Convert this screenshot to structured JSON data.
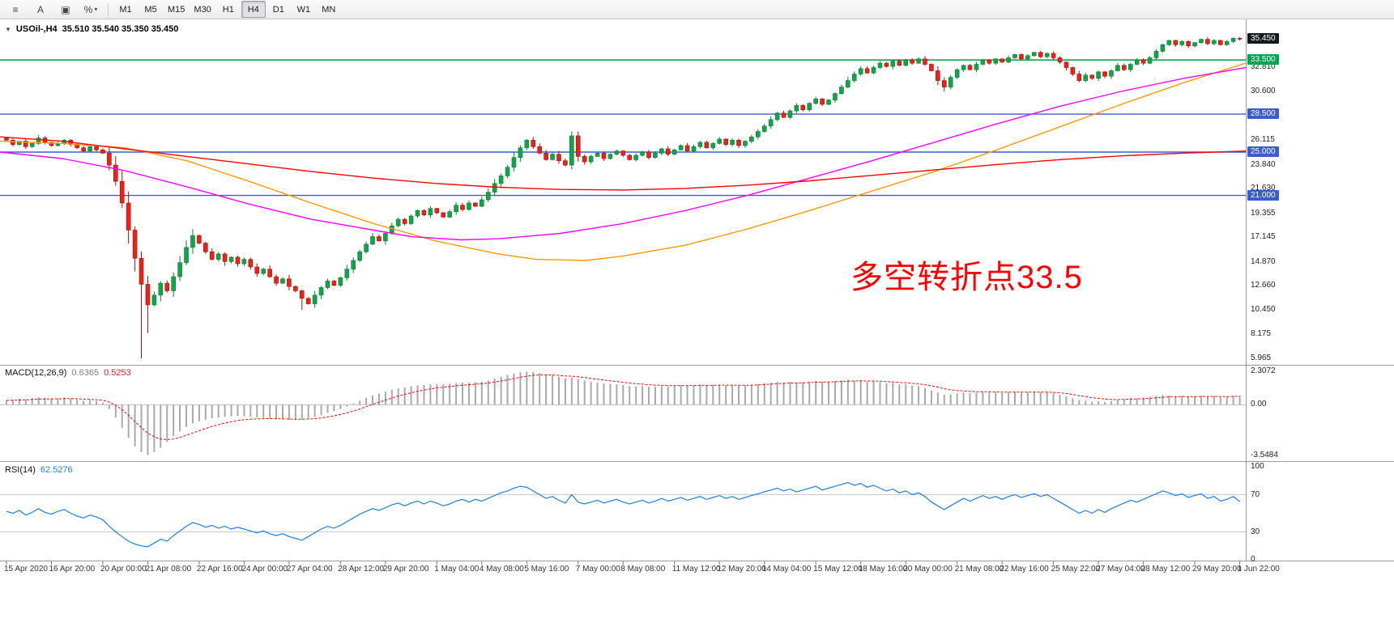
{
  "toolbar": {
    "tools": [
      {
        "name": "menu-icon",
        "glyph": "≡"
      },
      {
        "name": "text-tool-icon",
        "glyph": "A"
      },
      {
        "name": "frame-tool-icon",
        "glyph": "▣"
      },
      {
        "name": "indicator-dropdown-icon",
        "glyph": "%",
        "caret": "▾"
      }
    ],
    "timeframes": [
      "M1",
      "M5",
      "M15",
      "M30",
      "H1",
      "H4",
      "D1",
      "W1",
      "MN"
    ],
    "active_timeframe": "H4"
  },
  "main_header": {
    "dropdown_glyph": "▼",
    "symbol_text": "USOil-,H4",
    "ohlc_text": "35.510 35.540 35.350 35.450"
  },
  "annotation": {
    "text": "多空转折点33.5",
    "color": "#ff0000"
  },
  "chart_data": {
    "type": "candlestick",
    "symbol": "USOil-",
    "timeframe": "H4",
    "colors": {
      "up": "#10a54a",
      "up_border": "#0b7d36",
      "down": "#e8231a",
      "down_border": "#a31208",
      "macd_hist": "#a9a9a9",
      "macd_signal": "#ff0000",
      "rsi": "#1f7fe0",
      "separator": "#9a9a9a"
    },
    "price_axis": {
      "ticks": [
        "32.810",
        "30.600",
        "26.115",
        "23.840",
        "21.630",
        "19.355",
        "17.145",
        "14.870",
        "12.660",
        "10.450",
        "8.175",
        "5.965"
      ],
      "highlights": [
        {
          "label": "35.450",
          "value": 35.45,
          "bg": "#15181f"
        },
        {
          "label": "33.500",
          "value": 33.5,
          "bg": "#00a651"
        },
        {
          "label": "28.500",
          "value": 28.5,
          "bg": "#3a5fcd"
        },
        {
          "label": "25.000",
          "value": 25.0,
          "bg": "#3a5fcd"
        },
        {
          "label": "21.000",
          "value": 21.0,
          "bg": "#3a5fcd"
        }
      ]
    },
    "hlines": [
      {
        "value": 33.5,
        "color": "#009e46"
      },
      {
        "value": 28.5,
        "color": "#3a5fcd"
      },
      {
        "value": 25.0,
        "color": "#3a5fcd"
      },
      {
        "value": 21.0,
        "color": "#3a5fcd"
      }
    ],
    "moving_averages": [
      {
        "name": "ma-orange",
        "color": "#ff9900",
        "points": [
          [
            0,
            26.0
          ],
          [
            0.05,
            25.8
          ],
          [
            0.1,
            25.4
          ],
          [
            0.15,
            24.2
          ],
          [
            0.2,
            22.3
          ],
          [
            0.25,
            20.3
          ],
          [
            0.3,
            18.4
          ],
          [
            0.35,
            16.8
          ],
          [
            0.4,
            15.6
          ],
          [
            0.43,
            15.1
          ],
          [
            0.47,
            15.0
          ],
          [
            0.5,
            15.4
          ],
          [
            0.55,
            16.4
          ],
          [
            0.6,
            17.9
          ],
          [
            0.65,
            19.6
          ],
          [
            0.7,
            21.4
          ],
          [
            0.75,
            23.2
          ],
          [
            0.8,
            25.2
          ],
          [
            0.85,
            27.3
          ],
          [
            0.9,
            29.4
          ],
          [
            0.95,
            31.4
          ],
          [
            1,
            33.2
          ]
        ]
      },
      {
        "name": "ma-magenta",
        "color": "#ff00ff",
        "points": [
          [
            0,
            25.0
          ],
          [
            0.05,
            24.4
          ],
          [
            0.1,
            23.3
          ],
          [
            0.15,
            21.8
          ],
          [
            0.2,
            20.2
          ],
          [
            0.25,
            18.8
          ],
          [
            0.3,
            17.8
          ],
          [
            0.33,
            17.2
          ],
          [
            0.37,
            16.9
          ],
          [
            0.4,
            17.0
          ],
          [
            0.45,
            17.5
          ],
          [
            0.5,
            18.4
          ],
          [
            0.55,
            19.6
          ],
          [
            0.6,
            21.0
          ],
          [
            0.65,
            22.6
          ],
          [
            0.7,
            24.2
          ],
          [
            0.75,
            25.9
          ],
          [
            0.8,
            27.6
          ],
          [
            0.85,
            29.2
          ],
          [
            0.9,
            30.6
          ],
          [
            0.95,
            31.8
          ],
          [
            1,
            32.8
          ]
        ]
      },
      {
        "name": "ma-red",
        "color": "#ff0000",
        "points": [
          [
            0,
            26.4
          ],
          [
            0.05,
            26.0
          ],
          [
            0.1,
            25.3
          ],
          [
            0.15,
            24.6
          ],
          [
            0.2,
            23.9
          ],
          [
            0.25,
            23.2
          ],
          [
            0.3,
            22.6
          ],
          [
            0.35,
            22.1
          ],
          [
            0.4,
            21.75
          ],
          [
            0.45,
            21.55
          ],
          [
            0.5,
            21.5
          ],
          [
            0.55,
            21.65
          ],
          [
            0.6,
            21.95
          ],
          [
            0.65,
            22.35
          ],
          [
            0.7,
            22.85
          ],
          [
            0.75,
            23.35
          ],
          [
            0.8,
            23.85
          ],
          [
            0.85,
            24.3
          ],
          [
            0.9,
            24.65
          ],
          [
            0.95,
            24.9
          ],
          [
            1,
            25.1
          ]
        ]
      }
    ],
    "candles": {
      "first_open": 26.3,
      "closes": [
        26.1,
        25.7,
        26.0,
        25.5,
        25.8,
        26.3,
        25.9,
        25.6,
        25.8,
        26.1,
        25.7,
        25.4,
        25.1,
        25.5,
        25.2,
        24.9,
        23.8,
        22.3,
        20.3,
        17.8,
        15.2,
        12.8,
        10.9,
        11.8,
        12.9,
        12.2,
        13.5,
        14.8,
        16.2,
        17.3,
        16.6,
        15.8,
        15.1,
        15.6,
        14.9,
        15.3,
        14.7,
        15.1,
        14.4,
        13.8,
        14.2,
        13.5,
        12.9,
        13.3,
        12.6,
        12.2,
        11.5,
        11.0,
        11.8,
        12.5,
        13.1,
        12.7,
        13.4,
        14.2,
        15.0,
        15.8,
        16.5,
        17.2,
        16.8,
        17.5,
        18.2,
        18.8,
        18.4,
        19.1,
        19.6,
        19.2,
        19.8,
        19.4,
        19.0,
        19.5,
        20.1,
        19.7,
        20.3,
        20.0,
        20.6,
        21.3,
        22.1,
        22.8,
        23.6,
        24.5,
        25.4,
        26.1,
        25.5,
        24.9,
        24.3,
        24.8,
        24.2,
        23.8,
        26.5,
        24.6,
        24.1,
        24.6,
        24.9,
        24.4,
        24.8,
        25.1,
        24.7,
        24.3,
        24.7,
        25.0,
        24.5,
        24.9,
        25.3,
        24.8,
        25.2,
        25.6,
        25.1,
        25.5,
        25.9,
        25.4,
        25.8,
        26.2,
        25.7,
        26.1,
        25.6,
        26.0,
        26.4,
        26.9,
        27.4,
        28.0,
        28.6,
        28.2,
        28.8,
        29.3,
        28.9,
        29.5,
        29.9,
        29.4,
        29.8,
        30.4,
        31.0,
        31.6,
        32.2,
        32.7,
        32.3,
        32.8,
        33.2,
        32.9,
        33.4,
        33.0,
        33.5,
        33.2,
        33.6,
        33.1,
        32.5,
        31.6,
        31.0,
        31.9,
        32.6,
        33.0,
        32.6,
        33.1,
        33.5,
        33.2,
        33.6,
        33.3,
        33.7,
        34.0,
        33.6,
        33.9,
        34.2,
        33.8,
        34.1,
        33.7,
        33.3,
        32.8,
        32.2,
        31.6,
        32.1,
        31.8,
        32.4,
        32.0,
        32.5,
        33.0,
        32.6,
        33.1,
        33.5,
        33.2,
        33.7,
        34.3,
        34.9,
        35.3,
        34.9,
        35.2,
        34.8,
        35.1,
        35.4,
        35.0,
        35.3,
        34.9,
        35.2,
        35.5,
        35.45
      ],
      "wick_overrides": {
        "21": {
          "low": 5.97
        },
        "22": {
          "low": 8.3
        },
        "46": {
          "low": 10.45
        },
        "88": {
          "high": 26.9
        },
        "146": {
          "low": 30.6
        }
      }
    },
    "macd": {
      "title": "MACD(12,26,9)",
      "value_main": "0.6365",
      "value_signal": "0.5253",
      "range": [
        -3.7,
        2.5
      ],
      "axis_ticks": [
        "2.3072",
        "0.00",
        "-3.5484"
      ],
      "histogram": [
        0.3,
        0.35,
        0.42,
        0.38,
        0.45,
        0.52,
        0.48,
        0.4,
        0.44,
        0.5,
        0.42,
        0.35,
        0.28,
        0.32,
        0.25,
        0.15,
        -0.3,
        -0.9,
        -1.6,
        -2.3,
        -2.9,
        -3.3,
        -3.5,
        -3.3,
        -3.0,
        -2.6,
        -2.2,
        -1.85,
        -1.55,
        -1.3,
        -1.15,
        -1.05,
        -0.95,
        -0.9,
        -0.85,
        -0.8,
        -0.78,
        -0.8,
        -0.85,
        -0.9,
        -0.92,
        -0.95,
        -1.0,
        -1.02,
        -1.05,
        -1.05,
        -1.02,
        -0.95,
        -0.85,
        -0.72,
        -0.58,
        -0.45,
        -0.3,
        -0.12,
        0.08,
        0.28,
        0.48,
        0.65,
        0.78,
        0.92,
        1.05,
        1.15,
        1.2,
        1.28,
        1.35,
        1.38,
        1.42,
        1.45,
        1.42,
        1.45,
        1.5,
        1.55,
        1.52,
        1.58,
        1.62,
        1.7,
        1.82,
        1.95,
        2.08,
        2.18,
        2.26,
        2.3,
        2.28,
        2.2,
        2.1,
        2.05,
        1.95,
        1.85,
        1.9,
        1.8,
        1.68,
        1.6,
        1.55,
        1.48,
        1.45,
        1.42,
        1.38,
        1.3,
        1.28,
        1.3,
        1.25,
        1.25,
        1.3,
        1.28,
        1.32,
        1.35,
        1.32,
        1.35,
        1.4,
        1.35,
        1.38,
        1.4,
        1.35,
        1.38,
        1.32,
        1.35,
        1.4,
        1.45,
        1.5,
        1.55,
        1.6,
        1.55,
        1.6,
        1.55,
        1.58,
        1.62,
        1.66,
        1.6,
        1.62,
        1.66,
        1.7,
        1.74,
        1.68,
        1.72,
        1.62,
        1.65,
        1.58,
        1.5,
        1.52,
        1.42,
        1.44,
        1.32,
        1.3,
        1.18,
        1.0,
        0.85,
        0.7,
        0.72,
        0.78,
        0.85,
        0.8,
        0.84,
        0.9,
        0.85,
        0.88,
        0.82,
        0.86,
        0.9,
        0.85,
        0.88,
        0.92,
        0.86,
        0.88,
        0.8,
        0.7,
        0.58,
        0.45,
        0.32,
        0.28,
        0.22,
        0.25,
        0.2,
        0.26,
        0.32,
        0.4,
        0.48,
        0.45,
        0.5,
        0.56,
        0.62,
        0.68,
        0.64,
        0.58,
        0.62,
        0.55,
        0.58,
        0.62,
        0.55,
        0.6,
        0.52,
        0.56,
        0.62,
        0.6365
      ]
    },
    "rsi": {
      "title": "RSI(14)",
      "value": "62.5276",
      "levels": [
        70,
        30
      ],
      "axis_ticks": [
        "100",
        "70",
        "30",
        "0"
      ],
      "series": [
        52,
        50,
        53,
        48,
        51,
        55,
        51,
        49,
        52,
        54,
        50,
        47,
        45,
        48,
        46,
        43,
        36,
        30,
        25,
        20,
        17,
        15,
        14,
        18,
        22,
        20,
        26,
        31,
        36,
        40,
        38,
        35,
        37,
        34,
        36,
        33,
        35,
        33,
        31,
        29,
        31,
        28,
        26,
        28,
        25,
        23,
        21,
        25,
        29,
        33,
        36,
        34,
        37,
        41,
        45,
        49,
        52,
        55,
        53,
        56,
        59,
        61,
        58,
        61,
        63,
        60,
        63,
        61,
        58,
        60,
        63,
        65,
        62,
        65,
        63,
        66,
        69,
        72,
        74,
        77,
        79,
        78,
        74,
        70,
        66,
        68,
        64,
        61,
        70,
        62,
        60,
        62,
        64,
        61,
        63,
        65,
        62,
        60,
        62,
        64,
        61,
        63,
        66,
        63,
        65,
        67,
        64,
        66,
        68,
        65,
        67,
        69,
        66,
        68,
        65,
        67,
        69,
        71,
        73,
        75,
        77,
        74,
        76,
        73,
        75,
        77,
        79,
        75,
        77,
        79,
        81,
        83,
        80,
        82,
        78,
        80,
        77,
        74,
        76,
        72,
        74,
        70,
        72,
        68,
        62,
        58,
        54,
        58,
        62,
        66,
        63,
        66,
        69,
        66,
        68,
        65,
        68,
        70,
        67,
        69,
        71,
        68,
        70,
        66,
        62,
        58,
        54,
        50,
        53,
        50,
        54,
        51,
        55,
        58,
        61,
        64,
        62,
        65,
        68,
        71,
        74,
        72,
        69,
        71,
        67,
        69,
        71,
        66,
        68,
        63,
        65,
        68,
        62.5
      ]
    },
    "time_axis": {
      "labels": [
        {
          "text": "15 Apr 2020",
          "idx": 0
        },
        {
          "text": "16 Apr 20:00",
          "idx": 7
        },
        {
          "text": "20 Apr 00:00",
          "idx": 15
        },
        {
          "text": "21 Apr 08:00",
          "idx": 22
        },
        {
          "text": "22 Apr 16:00",
          "idx": 30
        },
        {
          "text": "24 Apr 00:00",
          "idx": 37
        },
        {
          "text": "27 Apr 04:00",
          "idx": 44
        },
        {
          "text": "28 Apr 12:00",
          "idx": 52
        },
        {
          "text": "29 Apr 20:00",
          "idx": 59
        },
        {
          "text": "1 May 04:00",
          "idx": 67
        },
        {
          "text": "4 May 08:00",
          "idx": 74
        },
        {
          "text": "5 May 16:00",
          "idx": 81
        },
        {
          "text": "7 May 00:00",
          "idx": 89
        },
        {
          "text": "8 May 08:00",
          "idx": 96
        },
        {
          "text": "11 May 12:00",
          "idx": 104
        },
        {
          "text": "12 May 20:00",
          "idx": 111
        },
        {
          "text": "14 May 04:00",
          "idx": 118
        },
        {
          "text": "15 May 12:00",
          "idx": 126
        },
        {
          "text": "18 May 16:00",
          "idx": 133
        },
        {
          "text": "20 May 00:00",
          "idx": 140
        },
        {
          "text": "21 May 08:00",
          "idx": 148
        },
        {
          "text": "22 May 16:00",
          "idx": 155
        },
        {
          "text": "25 May 22:00",
          "idx": 163
        },
        {
          "text": "27 May 04:00",
          "idx": 170
        },
        {
          "text": "28 May 12:00",
          "idx": 177
        },
        {
          "text": "29 May 20:00",
          "idx": 185
        },
        {
          "text": "1 Jun 22:00",
          "idx": 192
        }
      ]
    }
  }
}
